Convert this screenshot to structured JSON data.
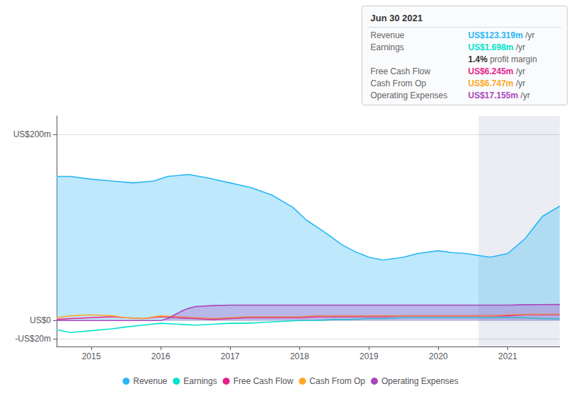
{
  "chart_data": {
    "type": "line",
    "xlim": [
      2014.5,
      2021.75
    ],
    "xticks": [
      2015,
      2016,
      2017,
      2018,
      2019,
      2020,
      2021
    ],
    "ylim": [
      -28,
      220
    ],
    "yticks": [
      {
        "value": -20,
        "label": "-US$20m"
      },
      {
        "value": 0,
        "label": "US$0"
      },
      {
        "value": 200,
        "label": "US$200m"
      }
    ],
    "grid": true,
    "legend": "bottom",
    "highlight_x": [
      2020.58,
      2021.75
    ],
    "series": [
      {
        "name": "Revenue",
        "type": "area",
        "color": "#29b6f6",
        "x": [
          2014.5,
          2014.7,
          2015.0,
          2015.3,
          2015.6,
          2015.9,
          2016.1,
          2016.4,
          2016.7,
          2017.0,
          2017.3,
          2017.6,
          2017.9,
          2018.1,
          2018.4,
          2018.6,
          2018.8,
          2019.0,
          2019.2,
          2019.5,
          2019.7,
          2020.0,
          2020.2,
          2020.4,
          2020.58,
          2020.75,
          2021.0,
          2021.25,
          2021.5,
          2021.75
        ],
        "values": [
          155,
          155,
          152,
          150,
          148,
          150,
          155,
          157,
          153,
          148,
          143,
          135,
          122,
          108,
          93,
          82,
          74,
          68,
          65,
          68,
          72,
          75,
          73,
          72,
          70,
          68,
          72,
          88,
          112,
          123
        ]
      },
      {
        "name": "Earnings",
        "type": "line",
        "color": "#00e5cc",
        "x": [
          2014.5,
          2014.7,
          2015.0,
          2015.3,
          2015.5,
          2015.75,
          2016.0,
          2016.25,
          2016.5,
          2016.75,
          2017.0,
          2017.25,
          2017.5,
          2017.75,
          2018.0,
          2018.25,
          2018.5,
          2018.75,
          2019.0,
          2019.25,
          2019.5,
          2019.75,
          2020.0,
          2020.25,
          2020.58,
          2020.75,
          2021.0,
          2021.25,
          2021.5,
          2021.75
        ],
        "values": [
          -10,
          -13,
          -11,
          -9,
          -7,
          -5,
          -3,
          -4,
          -5,
          -4,
          -3,
          -3,
          -2,
          -1,
          0,
          0,
          1,
          1,
          2,
          2,
          3,
          3,
          3,
          3,
          3,
          3,
          3,
          3,
          2,
          1.7
        ]
      },
      {
        "name": "Free Cash Flow",
        "type": "line",
        "color": "#e91e8c",
        "x": [
          2014.5,
          2014.7,
          2015.0,
          2015.3,
          2015.5,
          2015.75,
          2016.0,
          2016.25,
          2016.5,
          2016.75,
          2017.0,
          2017.25,
          2017.5,
          2017.75,
          2018.0,
          2018.25,
          2018.5,
          2018.75,
          2019.0,
          2019.25,
          2019.5,
          2019.75,
          2020.0,
          2020.25,
          2020.58,
          2020.75,
          2021.0,
          2021.25,
          2021.5,
          2021.75
        ],
        "values": [
          1,
          2,
          3,
          4,
          3,
          2,
          4,
          3,
          2,
          1,
          2,
          3,
          3,
          3,
          3,
          4,
          4,
          4,
          4,
          4,
          5,
          5,
          5,
          5,
          5,
          5,
          5,
          6,
          6.2,
          6.245
        ]
      },
      {
        "name": "Cash From Op",
        "type": "line",
        "color": "#ffa726",
        "x": [
          2014.5,
          2014.7,
          2015.0,
          2015.3,
          2015.5,
          2015.75,
          2016.0,
          2016.25,
          2016.5,
          2016.75,
          2017.0,
          2017.25,
          2017.5,
          2017.75,
          2018.0,
          2018.25,
          2018.5,
          2018.75,
          2019.0,
          2019.25,
          2019.5,
          2019.75,
          2020.0,
          2020.25,
          2020.58,
          2020.75,
          2021.0,
          2021.25,
          2021.5,
          2021.75
        ],
        "values": [
          3,
          5,
          6,
          5,
          3,
          2,
          5,
          4,
          3,
          2,
          3,
          4,
          4,
          4,
          4,
          5,
          5,
          5,
          5,
          5,
          5,
          5,
          5,
          5,
          5,
          5,
          6,
          6.5,
          6.7,
          6.747
        ]
      },
      {
        "name": "Operating Expenses",
        "type": "area",
        "color": "#ab47bc",
        "x": [
          2014.5,
          2015.0,
          2015.5,
          2016.0,
          2016.1,
          2016.2,
          2016.3,
          2016.4,
          2016.5,
          2016.75,
          2017.0,
          2017.25,
          2017.5,
          2017.75,
          2018.0,
          2018.5,
          2019.0,
          2019.5,
          2020.0,
          2020.58,
          2020.75,
          2021.0,
          2021.25,
          2021.5,
          2021.75
        ],
        "values": [
          0,
          0,
          0,
          0,
          2,
          6,
          10,
          13,
          15,
          16,
          16.5,
          16.5,
          16.5,
          16.5,
          16.5,
          16.5,
          16.5,
          16.5,
          16.5,
          16.5,
          16.5,
          16.5,
          17,
          17.1,
          17.155
        ]
      }
    ],
    "info_box": {
      "title": "Jun 30 2021",
      "rows": [
        {
          "label": "Revenue",
          "value": "US$123.319m",
          "unit": "/yr",
          "color": "#29b6f6"
        },
        {
          "label": "Earnings",
          "value": "US$1.698m",
          "unit": "/yr",
          "color": "#00e5cc"
        },
        {
          "value": "1.4%",
          "unit": "profit margin"
        },
        {
          "label": "Free Cash Flow",
          "value": "US$6.245m",
          "unit": "/yr",
          "color": "#e91e8c"
        },
        {
          "label": "Cash From Op",
          "value": "US$6.747m",
          "unit": "/yr",
          "color": "#ffa726"
        },
        {
          "label": "Operating Expenses",
          "value": "US$17.155m",
          "unit": "/yr",
          "color": "#ab47bc"
        }
      ]
    }
  }
}
